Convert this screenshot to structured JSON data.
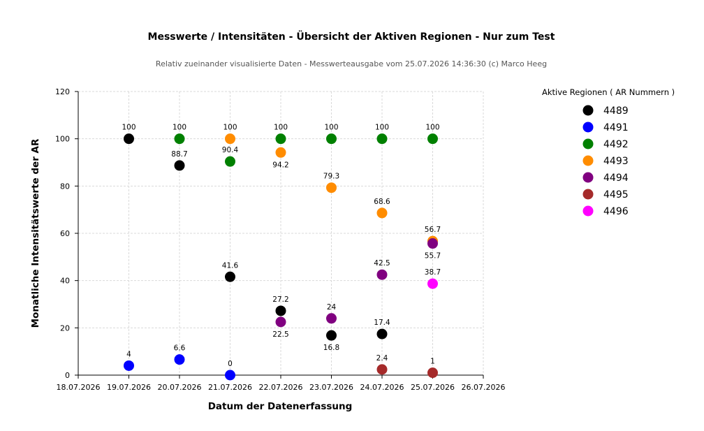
{
  "chart_data": {
    "type": "scatter",
    "title": "Messwerte / Intensitäten - Übersicht der Aktiven Regionen - Nur zum Test",
    "subtitle": "Relativ zueinander visualisierte Daten - Messwerteausgabe vom 25.07.2026 14:36:30 (c) Marco Heeg",
    "xlabel": "Datum der Datenerfassung",
    "ylabel": "Monatliche Intensitätswerte der AR",
    "x_ticks": [
      "18.07.2026",
      "19.07.2026",
      "20.07.2026",
      "21.07.2026",
      "22.07.2026",
      "23.07.2026",
      "24.07.2026",
      "25.07.2026",
      "26.07.2026"
    ],
    "ylim": [
      0,
      120
    ],
    "y_ticks": [
      "0",
      "20",
      "40",
      "60",
      "80",
      "100",
      "120"
    ],
    "grid": true,
    "legend_title": "Aktive Regionen ( AR Nummern )",
    "legend_position": "right",
    "series": [
      {
        "name": "4489",
        "color": "#000000",
        "points": [
          {
            "x": "19.07.2026",
            "y": 100,
            "label": "100",
            "label_pos": "above"
          },
          {
            "x": "20.07.2026",
            "y": 88.7,
            "label": "88.7",
            "label_pos": "above"
          },
          {
            "x": "21.07.2026",
            "y": 41.6,
            "label": "41.6",
            "label_pos": "above"
          },
          {
            "x": "22.07.2026",
            "y": 27.2,
            "label": "27.2",
            "label_pos": "above"
          },
          {
            "x": "23.07.2026",
            "y": 16.8,
            "label": "16.8",
            "label_pos": "below"
          },
          {
            "x": "24.07.2026",
            "y": 17.4,
            "label": "17.4",
            "label_pos": "above"
          }
        ]
      },
      {
        "name": "4491",
        "color": "#0000ff",
        "points": [
          {
            "x": "19.07.2026",
            "y": 4,
            "label": "4",
            "label_pos": "above"
          },
          {
            "x": "20.07.2026",
            "y": 6.6,
            "label": "6.6",
            "label_pos": "above"
          },
          {
            "x": "21.07.2026",
            "y": 0,
            "label": "0",
            "label_pos": "above"
          }
        ]
      },
      {
        "name": "4492",
        "color": "#008000",
        "points": [
          {
            "x": "20.07.2026",
            "y": 100,
            "label": "100",
            "label_pos": "above"
          },
          {
            "x": "21.07.2026",
            "y": 90.4,
            "label": "90.4",
            "label_pos": "above"
          },
          {
            "x": "22.07.2026",
            "y": 100,
            "label": "100",
            "label_pos": "above"
          },
          {
            "x": "23.07.2026",
            "y": 100,
            "label": "100",
            "label_pos": "above"
          },
          {
            "x": "24.07.2026",
            "y": 100,
            "label": "100",
            "label_pos": "above"
          },
          {
            "x": "25.07.2026",
            "y": 100,
            "label": "100",
            "label_pos": "above"
          }
        ]
      },
      {
        "name": "4493",
        "color": "#ff8c00",
        "points": [
          {
            "x": "21.07.2026",
            "y": 100,
            "label": "100",
            "label_pos": "above"
          },
          {
            "x": "22.07.2026",
            "y": 94.2,
            "label": "94.2",
            "label_pos": "below"
          },
          {
            "x": "23.07.2026",
            "y": 79.3,
            "label": "79.3",
            "label_pos": "above"
          },
          {
            "x": "24.07.2026",
            "y": 68.6,
            "label": "68.6",
            "label_pos": "above"
          },
          {
            "x": "25.07.2026",
            "y": 56.7,
            "label": "56.7",
            "label_pos": "above"
          }
        ]
      },
      {
        "name": "4494",
        "color": "#800080",
        "points": [
          {
            "x": "22.07.2026",
            "y": 22.5,
            "label": "22.5",
            "label_pos": "below"
          },
          {
            "x": "23.07.2026",
            "y": 24,
            "label": "24",
            "label_pos": "above"
          },
          {
            "x": "24.07.2026",
            "y": 42.5,
            "label": "42.5",
            "label_pos": "above"
          },
          {
            "x": "25.07.2026",
            "y": 55.7,
            "label": "55.7",
            "label_pos": "below"
          }
        ]
      },
      {
        "name": "4495",
        "color": "#a52a2a",
        "points": [
          {
            "x": "24.07.2026",
            "y": 2.4,
            "label": "2.4",
            "label_pos": "above"
          },
          {
            "x": "25.07.2026",
            "y": 1,
            "label": "1",
            "label_pos": "above"
          }
        ]
      },
      {
        "name": "4496",
        "color": "#ff00ff",
        "points": [
          {
            "x": "25.07.2026",
            "y": 38.7,
            "label": "38.7",
            "label_pos": "above"
          }
        ]
      }
    ]
  }
}
